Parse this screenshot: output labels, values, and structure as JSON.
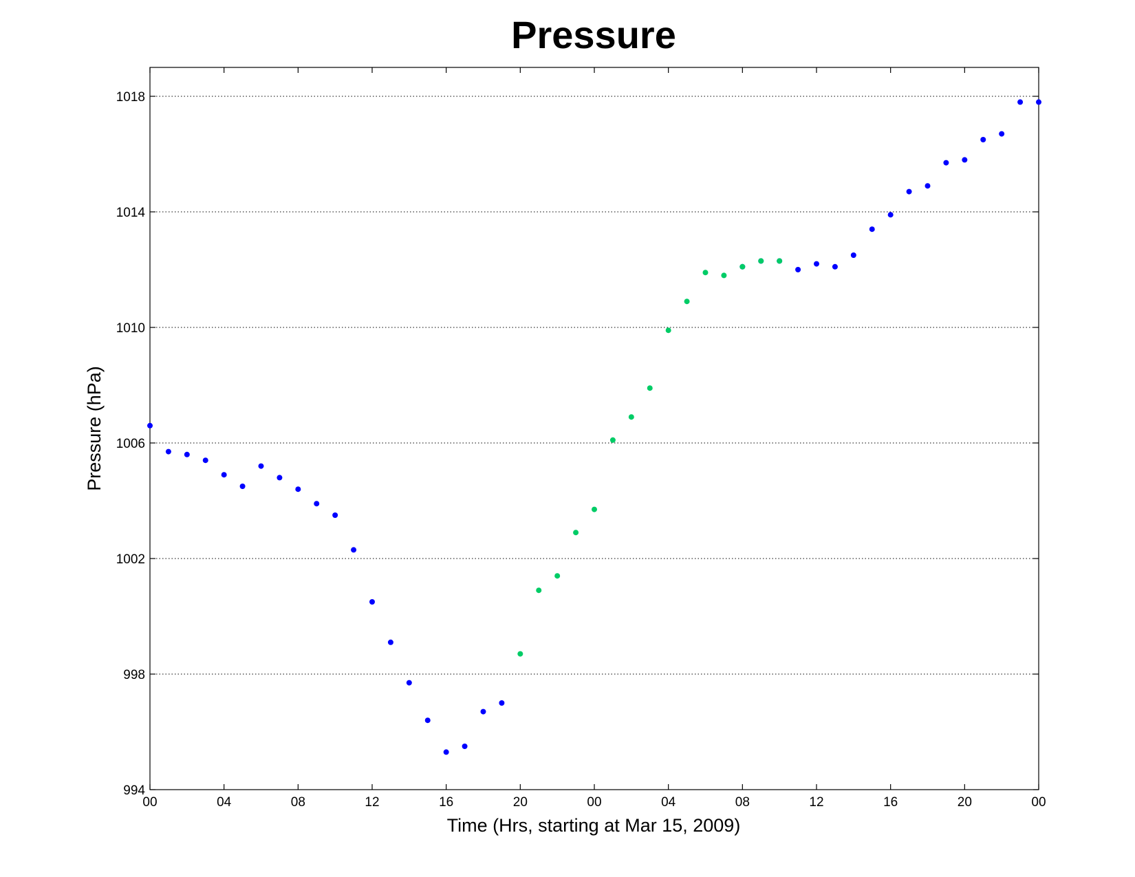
{
  "chart_data": {
    "type": "scatter",
    "title": "Pressure",
    "xlabel": "Time (Hrs, starting at Mar 15, 2009)",
    "ylabel": "Pressure (hPa)",
    "xlim": [
      0,
      48
    ],
    "ylim": [
      994,
      1019
    ],
    "x_ticks": [
      0,
      4,
      8,
      12,
      16,
      20,
      24,
      28,
      32,
      36,
      40,
      44,
      48
    ],
    "x_tick_labels": [
      "00",
      "04",
      "08",
      "12",
      "16",
      "20",
      "00",
      "04",
      "08",
      "12",
      "16",
      "20",
      "00"
    ],
    "y_ticks": [
      994,
      998,
      1002,
      1006,
      1010,
      1014,
      1018
    ],
    "y_tick_labels": [
      "994",
      "998",
      "1002",
      "1006",
      "1010",
      "1014",
      "1018"
    ],
    "grid": "y-dotted",
    "series": [
      {
        "color": "#0000ff",
        "x": [
          0,
          1,
          2,
          3,
          4,
          5,
          6,
          7,
          8,
          9,
          10,
          11,
          12,
          13,
          14,
          15,
          16,
          17,
          18,
          19,
          32,
          33,
          34,
          35,
          36,
          37,
          38,
          39,
          40,
          41,
          42,
          43,
          44,
          45,
          46,
          47,
          48
        ],
        "values": [
          1006.6,
          1005.7,
          1005.6,
          1005.4,
          1004.9,
          1004.5,
          1005.2,
          1004.8,
          1004.4,
          1003.9,
          1003.5,
          1002.3,
          1000.5,
          999.1,
          997.7,
          996.4,
          995.3,
          995.5,
          996.7,
          997.0,
          1012.1,
          1012.3,
          1012.3,
          1012.0,
          1012.2,
          1012.1,
          1012.5,
          1013.4,
          1013.9,
          1014.7,
          1014.9,
          1015.7,
          1015.8,
          1016.5,
          1016.7,
          1017.8,
          1017.8
        ]
      },
      {
        "color": "#00cc66",
        "x": [
          20,
          21,
          22,
          23,
          24,
          25,
          26,
          27,
          28,
          29,
          30,
          31,
          32,
          33,
          34
        ],
        "values": [
          998.7,
          1000.9,
          1001.4,
          1002.9,
          1003.7,
          1006.1,
          1006.9,
          1007.9,
          1009.9,
          1010.9,
          1011.9,
          1011.8,
          1012.1,
          1012.3,
          1012.3
        ]
      }
    ]
  }
}
